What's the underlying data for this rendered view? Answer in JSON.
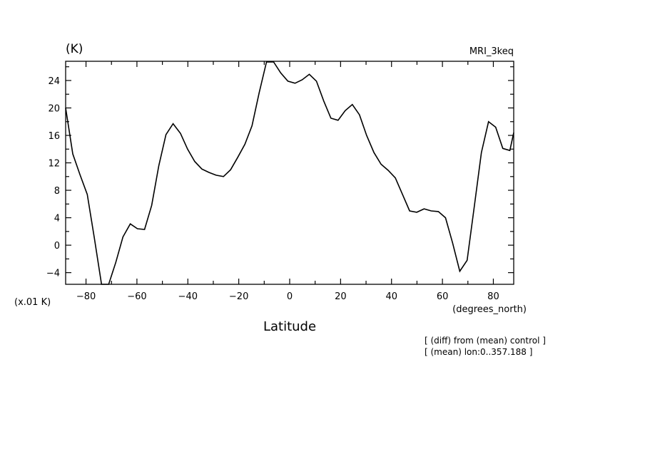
{
  "chart_data": {
    "type": "line",
    "title": "MRI_3keq",
    "units": "(K)",
    "scale_note": "(x.01 K)",
    "xlabel": "Latitude",
    "xunits": "(degrees_north)",
    "annotations": [
      "[ (diff) from (mean) control ]",
      "[ (mean) lon:0..357.188 ]"
    ],
    "xlim": [
      -88,
      88
    ],
    "ylim": [
      -5.7,
      26.8
    ],
    "x_ticks": [
      -80,
      -60,
      -40,
      -20,
      0,
      20,
      40,
      60,
      80
    ],
    "y_ticks": [
      -4,
      0,
      4,
      8,
      12,
      16,
      20,
      24
    ],
    "grid": false,
    "series": [
      {
        "x": [
          -88,
          -85.2,
          -82.4,
          -79.5,
          -76.7,
          -73.9,
          -71.1,
          -68.3,
          -65.5,
          -62.6,
          -59.8,
          -57.0,
          -54.2,
          -51.4,
          -48.6,
          -45.8,
          -42.9,
          -40.1,
          -37.3,
          -34.5,
          -31.7,
          -28.9,
          -26.0,
          -23.2,
          -20.4,
          -17.6,
          -14.8,
          -12.0,
          -9.1,
          -6.3,
          -3.5,
          -0.7,
          2.1,
          4.9,
          7.7,
          10.5,
          13.4,
          16.2,
          19.0,
          21.8,
          24.6,
          27.4,
          30.2,
          33.1,
          35.9,
          38.7,
          41.5,
          44.3,
          47.1,
          49.9,
          52.8,
          55.6,
          58.4,
          61.2,
          64.0,
          66.8,
          69.7,
          72.5,
          75.3,
          78.1,
          80.9,
          83.7,
          86.5,
          88
        ],
        "y": [
          20.0,
          13.3,
          10.3,
          7.4,
          1.0,
          -5.7,
          -5.7,
          -2.5,
          1.2,
          3.1,
          2.4,
          2.3,
          5.8,
          11.6,
          16.1,
          17.7,
          16.3,
          14.0,
          12.2,
          11.1,
          10.6,
          10.2,
          10.0,
          11.0,
          12.8,
          14.7,
          17.4,
          22.2,
          26.7,
          26.7,
          25.1,
          23.9,
          23.6,
          24.1,
          24.9,
          23.9,
          21.0,
          18.5,
          18.2,
          19.6,
          20.5,
          19.0,
          16.0,
          13.5,
          11.8,
          10.9,
          9.8,
          7.4,
          5.0,
          4.8,
          5.3,
          5.0,
          4.9,
          4.0,
          0.3,
          -3.8,
          -2.2,
          5.6,
          13.5,
          18.0,
          17.2,
          14.1,
          13.8,
          16.4
        ]
      }
    ]
  }
}
